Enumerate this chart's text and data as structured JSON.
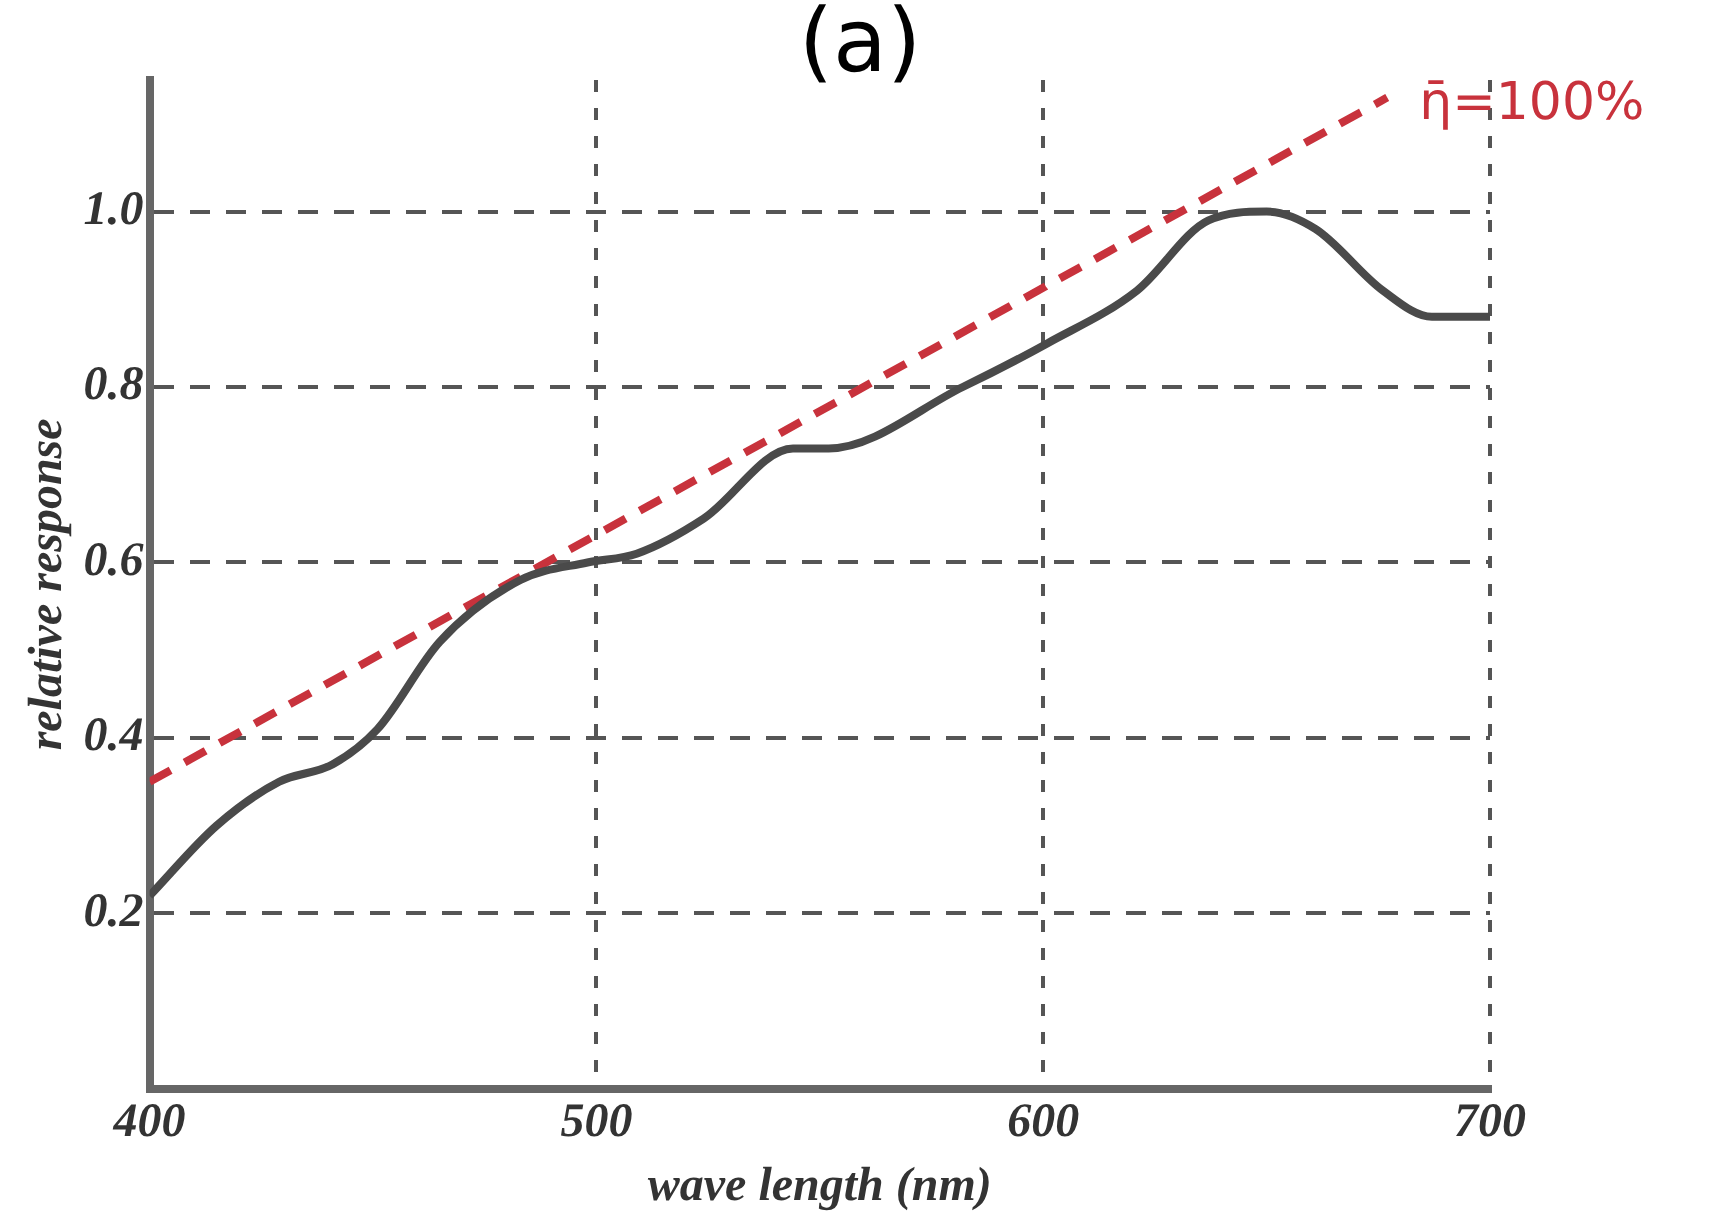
{
  "chart_data": {
    "type": "line",
    "title": "(a)",
    "xlabel": "wave length (nm)",
    "ylabel": "relative response",
    "xlim": [
      400,
      700
    ],
    "xticks": [
      400,
      500,
      600,
      700
    ],
    "ylim": [
      0,
      1.15
    ],
    "yticks": [
      0.2,
      0.4,
      0.6,
      0.8,
      {
        "value": 1,
        "label": "1.0"
      }
    ],
    "grid": true,
    "legend": false,
    "marker": "none",
    "series": [
      {
        "color": "#4a4a4a",
        "line_style": "solid",
        "x": [
          400,
          415,
          429,
          441,
          451,
          465,
          483,
          498,
          509,
          524,
          544,
          552,
          582,
          601,
          621,
          637,
          650,
          661,
          676,
          687,
          700
        ],
        "values": [
          0.22,
          0.3,
          0.35,
          0.37,
          0.41,
          0.51,
          0.58,
          0.6,
          0.61,
          0.65,
          0.73,
          0.73,
          0.8,
          0.85,
          0.91,
          0.99,
          1.0,
          0.98,
          0.91,
          0.88,
          0.88
        ]
      },
      {
        "name": "η̄=100%",
        "color": "#c8323c",
        "line_style": "dashed",
        "x": [
          400,
          677
        ],
        "values": [
          0.35,
          1.13
        ]
      }
    ]
  }
}
